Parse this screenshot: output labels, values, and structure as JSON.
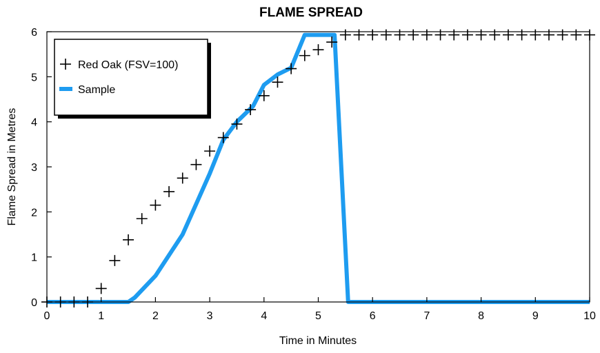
{
  "chart_data": {
    "type": "line",
    "title": "FLAME SPREAD",
    "xlabel": "Time in Minutes",
    "ylabel": "Flame Spread in Metres",
    "xlim": [
      0,
      10
    ],
    "ylim": [
      0,
      6
    ],
    "xticks": [
      "0",
      "1",
      "2",
      "3",
      "4",
      "5",
      "6",
      "7",
      "8",
      "9",
      "10"
    ],
    "yticks": [
      "0",
      "1",
      "2",
      "3",
      "4",
      "5",
      "6"
    ],
    "grid": false,
    "legend_position": "top-left",
    "colors": {
      "red_oak": "#000000",
      "sample": "#1e9cf0"
    },
    "series": [
      {
        "name": "Red Oak (FSV=100)",
        "marker": "plus",
        "x": [
          0,
          0.25,
          0.5,
          0.75,
          1.0,
          1.25,
          1.5,
          1.75,
          2.0,
          2.25,
          2.5,
          2.75,
          3.0,
          3.25,
          3.5,
          3.75,
          4.0,
          4.25,
          4.5,
          4.75,
          5.0,
          5.25,
          5.5,
          5.75,
          6.0,
          6.25,
          6.5,
          6.75,
          7.0,
          7.25,
          7.5,
          7.75,
          8.0,
          8.25,
          8.5,
          8.75,
          9.0,
          9.25,
          9.5,
          9.75,
          10.0
        ],
        "y": [
          0,
          0,
          0,
          0,
          0.3,
          0.92,
          1.38,
          1.85,
          2.15,
          2.45,
          2.75,
          3.05,
          3.35,
          3.65,
          3.95,
          4.27,
          4.58,
          4.88,
          5.18,
          5.47,
          5.6,
          5.77,
          5.93,
          5.93,
          5.93,
          5.93,
          5.93,
          5.93,
          5.93,
          5.93,
          5.93,
          5.93,
          5.93,
          5.93,
          5.93,
          5.93,
          5.93,
          5.93,
          5.93,
          5.93,
          5.93
        ]
      },
      {
        "name": "Sample",
        "marker": "none",
        "x": [
          0,
          1.5,
          1.62,
          2.0,
          2.5,
          3.0,
          3.25,
          3.5,
          3.8,
          4.0,
          4.25,
          4.5,
          4.75,
          5.2,
          5.3,
          5.55,
          6,
          7,
          8,
          9,
          10
        ],
        "y": [
          0,
          0,
          0.1,
          0.58,
          1.5,
          2.85,
          3.6,
          4.0,
          4.35,
          4.82,
          5.05,
          5.2,
          5.93,
          5.93,
          5.93,
          0,
          0,
          0,
          0,
          0,
          0
        ]
      }
    ]
  }
}
